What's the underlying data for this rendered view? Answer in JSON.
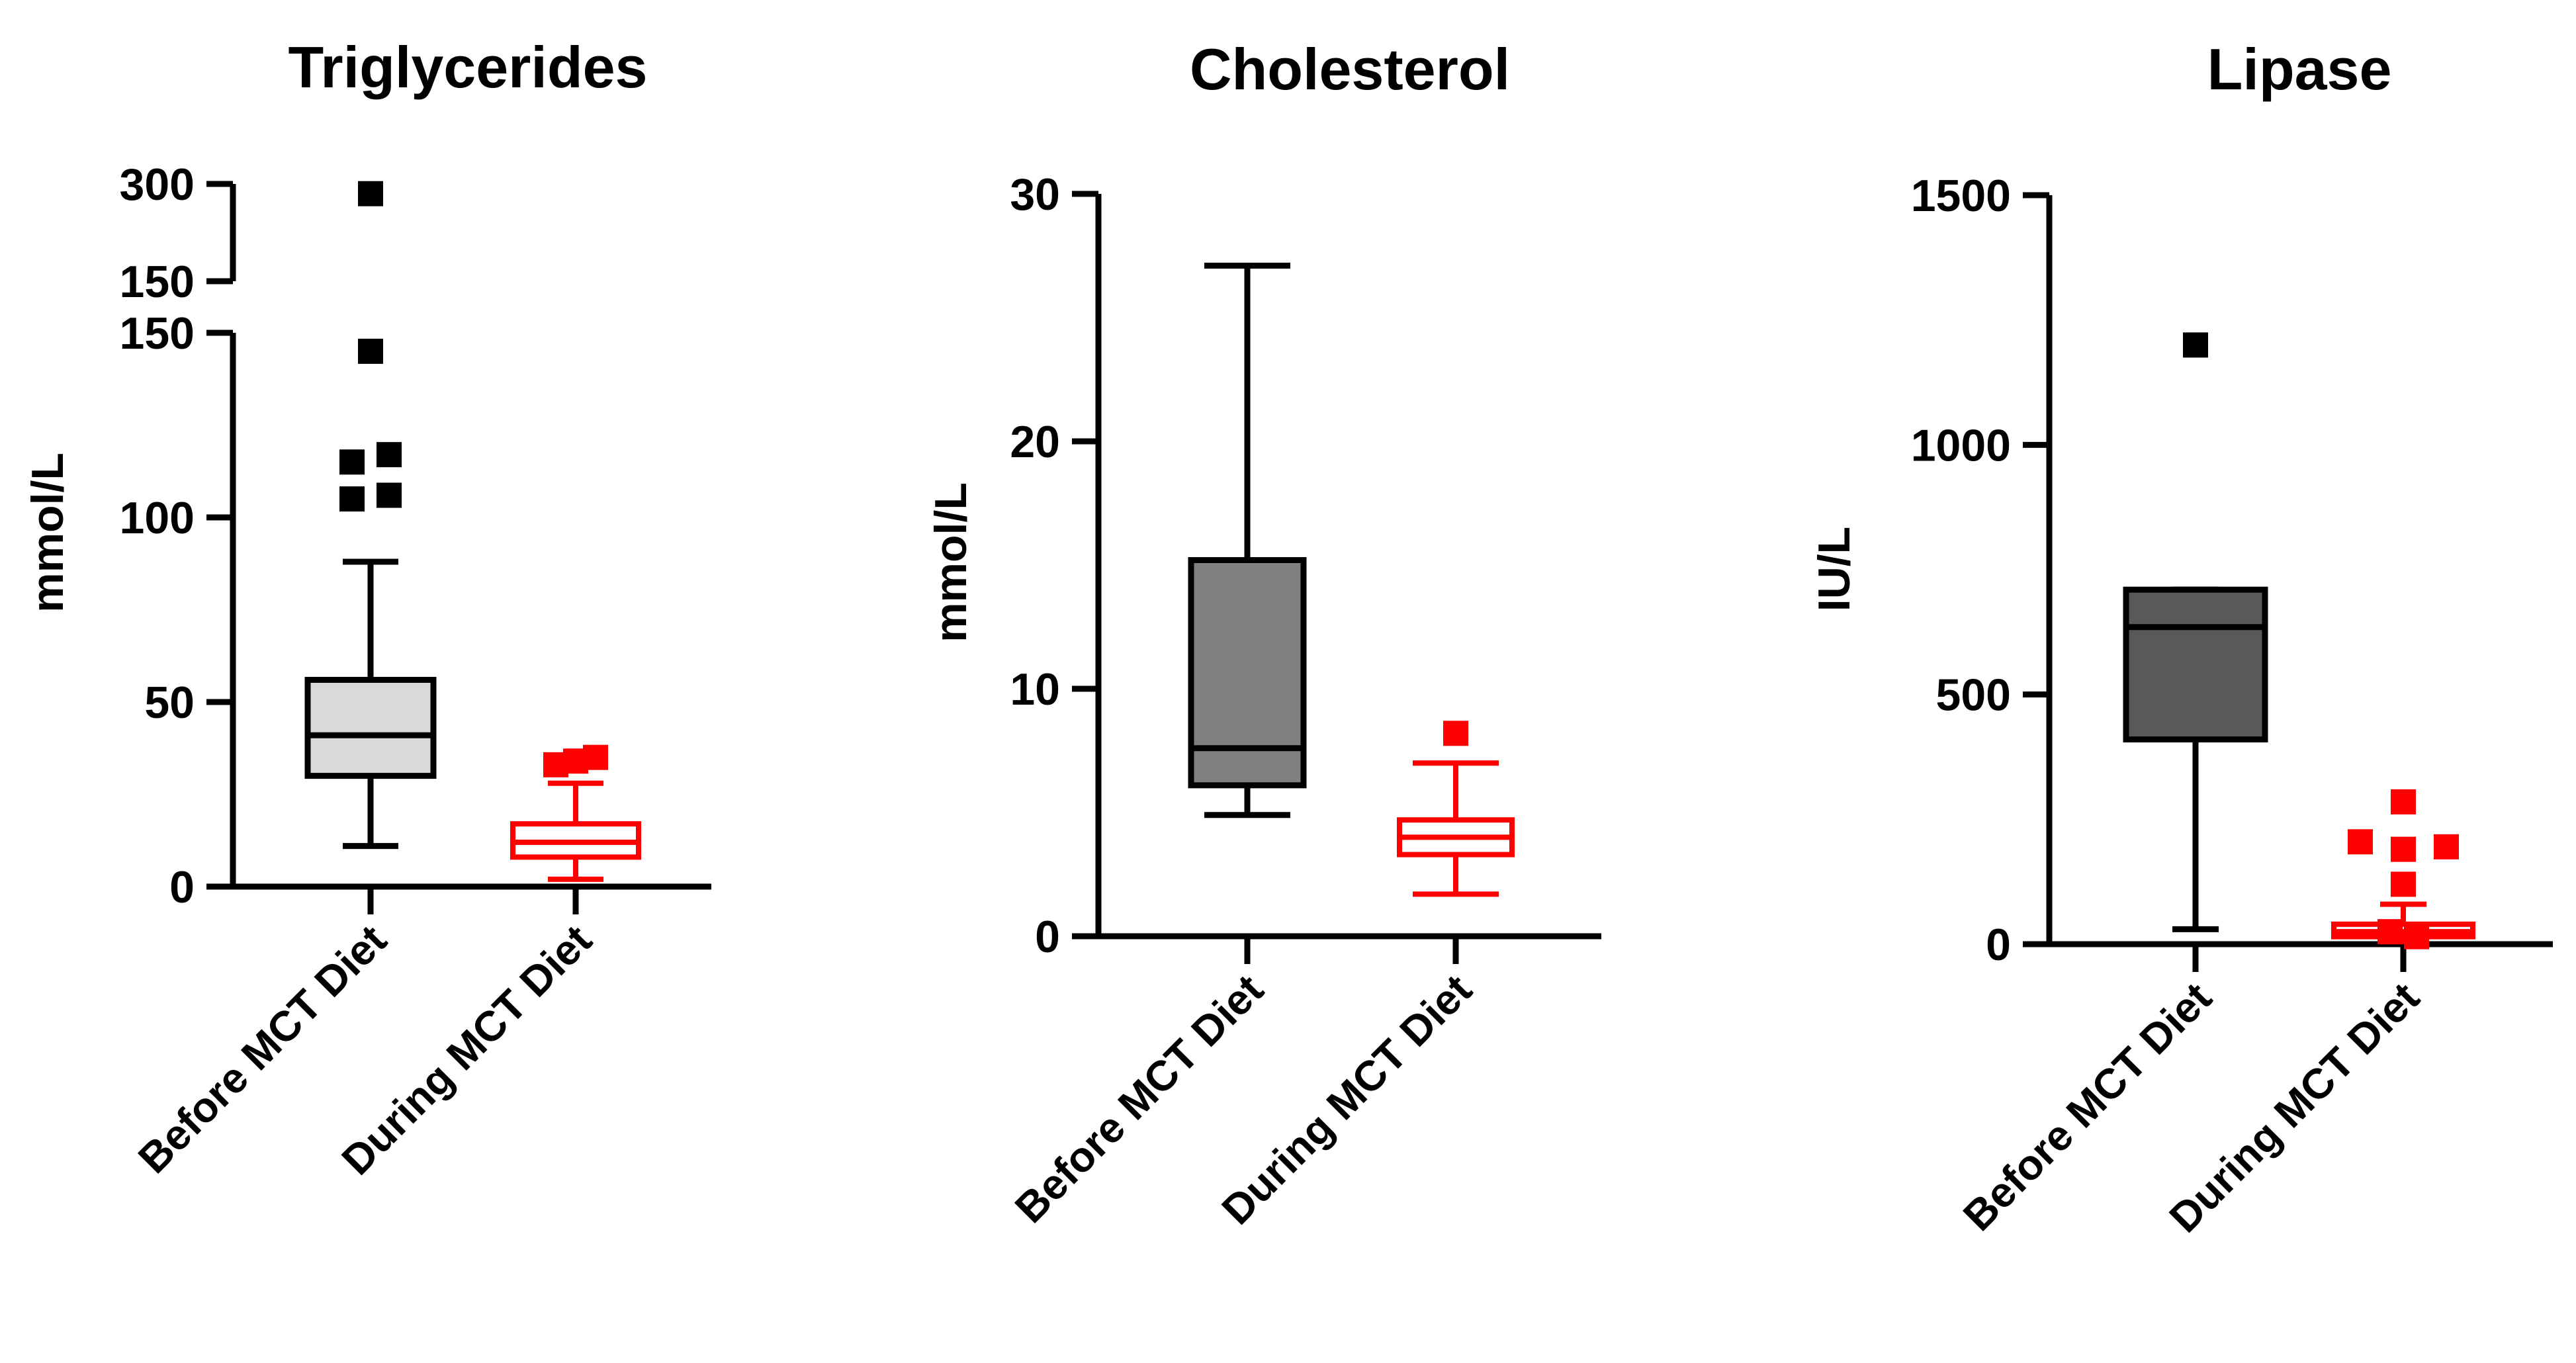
{
  "chart_data": [
    {
      "type": "box",
      "title": "Triglycerides",
      "ylabel": "mmol/L",
      "xlabel": "",
      "categories": [
        "Before MCT Diet",
        "During MCT Diet"
      ],
      "y_axis_break": {
        "lower_segment": [
          0,
          150
        ],
        "upper_segment": [
          150,
          300
        ]
      },
      "yticks": [
        0,
        50,
        100,
        150
      ],
      "upper_segment_ticks": [
        150,
        300
      ],
      "grid": false,
      "series": [
        {
          "name": "Before MCT Diet",
          "color": "#d9d9d9",
          "line_color": "#000000",
          "whisker_low": 11,
          "q1": 30,
          "median": 41,
          "q3": 56,
          "whisker_high": 88,
          "outliers": [
            105,
            106,
            115,
            117,
            145,
            285
          ]
        },
        {
          "name": "During MCT Diet",
          "color": "#ffffff",
          "line_color": "#ff0000",
          "whisker_low": 2,
          "q1": 8,
          "median": 12,
          "q3": 17,
          "whisker_high": 28,
          "outliers": [
            33,
            35,
            34
          ]
        }
      ]
    },
    {
      "type": "box",
      "title": "Cholesterol",
      "ylabel": "mmol/L",
      "xlabel": "",
      "categories": [
        "Before MCT Diet",
        "During MCT Diet"
      ],
      "ylim": [
        0,
        30
      ],
      "yticks": [
        0,
        10,
        20,
        30
      ],
      "grid": false,
      "series": [
        {
          "name": "Before MCT Diet",
          "color": "#808080",
          "line_color": "#000000",
          "whisker_low": 4.9,
          "q1": 6.1,
          "median": 7.6,
          "q3": 15.2,
          "whisker_high": 27.1,
          "outliers": []
        },
        {
          "name": "During MCT Diet",
          "color": "#ffffff",
          "line_color": "#ff0000",
          "whisker_low": 1.7,
          "q1": 3.3,
          "median": 4.0,
          "q3": 4.7,
          "whisker_high": 7.0,
          "outliers": [
            8.2
          ]
        }
      ]
    },
    {
      "type": "box",
      "title": "Lipase",
      "ylabel": "IU/L",
      "xlabel": "",
      "categories": [
        "Before MCT Diet",
        "During MCT Diet"
      ],
      "ylim": [
        0,
        1500
      ],
      "yticks": [
        0,
        500,
        1000,
        1500
      ],
      "grid": false,
      "series": [
        {
          "name": "Before MCT Diet",
          "color": "#595959",
          "line_color": "#000000",
          "whisker_low": 30,
          "q1": 410,
          "median": 635,
          "q3": 710,
          "whisker_high": 710,
          "outliers": [
            1200
          ]
        },
        {
          "name": "During MCT Diet",
          "color": "#ffffff",
          "line_color": "#ff0000",
          "whisker_low": 5,
          "q1": 15,
          "median": 25,
          "q3": 40,
          "whisker_high": 80,
          "outliers": [
            120,
            190,
            205,
            195,
            285,
            25,
            15
          ]
        }
      ]
    }
  ]
}
